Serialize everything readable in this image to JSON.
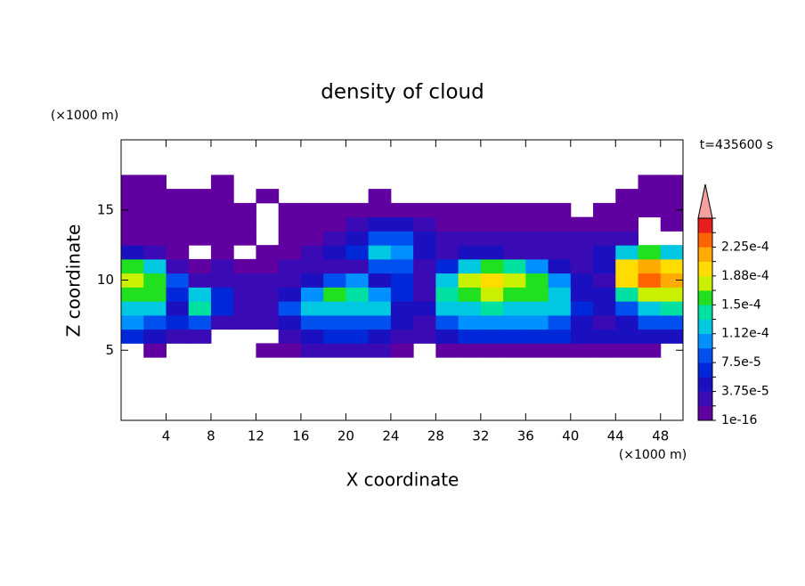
{
  "chart_data": {
    "type": "contour",
    "title": "density of cloud",
    "x_label": "X coordinate",
    "y_label": "Z coordinate",
    "x_unit": "(×1000 m)",
    "y_unit": "(×1000 m)",
    "annotation": "t=435600 s",
    "xlim": [
      0,
      50
    ],
    "ylim": [
      0,
      20
    ],
    "xticks": [
      4,
      8,
      12,
      16,
      20,
      24,
      28,
      32,
      36,
      40,
      44,
      48
    ],
    "yticks": [
      5,
      10,
      15
    ],
    "x": [
      1,
      3,
      5,
      7,
      9,
      11,
      13,
      15,
      17,
      19,
      21,
      23,
      25,
      27,
      29,
      31,
      33,
      35,
      37,
      39,
      41,
      43,
      45,
      47,
      49
    ],
    "y": [
      5,
      6,
      7,
      8,
      9,
      10,
      11,
      12,
      13,
      14,
      15,
      16,
      17
    ],
    "z": [
      [
        null,
        1e-05,
        null,
        null,
        null,
        null,
        1e-05,
        1e-05,
        2e-05,
        2e-05,
        2e-05,
        2e-05,
        1e-05,
        null,
        1e-05,
        1e-05,
        1e-05,
        1e-05,
        1e-05,
        1e-05,
        1e-05,
        1e-05,
        1e-05,
        1e-05,
        null
      ],
      [
        6e-05,
        4e-05,
        3e-05,
        2e-05,
        null,
        null,
        null,
        3e-05,
        5e-05,
        6e-05,
        6e-05,
        5e-05,
        3e-05,
        2e-05,
        5e-05,
        6e-05,
        6e-05,
        6e-05,
        6e-05,
        6e-05,
        4e-05,
        4e-05,
        4e-05,
        5e-05,
        5e-05
      ],
      [
        0.0001,
        8e-05,
        6e-05,
        8e-05,
        3e-05,
        2e-05,
        2e-05,
        4e-05,
        8e-05,
        9e-05,
        9e-05,
        8e-05,
        5e-05,
        3e-05,
        8e-05,
        0.0001,
        0.0001,
        0.0001,
        0.0001,
        9e-05,
        5e-05,
        3e-05,
        5e-05,
        8e-05,
        9e-05
      ],
      [
        0.00013,
        0.00012,
        5e-05,
        0.00014,
        6e-05,
        3e-05,
        3e-05,
        8e-05,
        0.00012,
        0.00013,
        0.00013,
        0.00012,
        5e-05,
        4e-05,
        0.00012,
        0.00013,
        0.00014,
        0.00013,
        0.00013,
        0.00012,
        6e-05,
        4e-05,
        8e-05,
        0.00013,
        0.00014
      ],
      [
        0.00015,
        0.00016,
        6e-05,
        0.00012,
        7e-05,
        3e-05,
        3e-05,
        5e-05,
        0.00011,
        0.00015,
        0.00014,
        0.00011,
        7e-05,
        3e-05,
        0.00014,
        0.00016,
        0.00017,
        0.00016,
        0.00015,
        0.00012,
        5e-05,
        4e-05,
        0.00014,
        0.00018,
        0.00017
      ],
      [
        0.00018,
        0.00016,
        8e-05,
        3e-05,
        2e-05,
        3e-05,
        2e-05,
        3e-05,
        4e-05,
        9e-05,
        0.00011,
        4e-05,
        6e-05,
        2e-05,
        0.00013,
        0.00017,
        0.00019,
        0.00018,
        0.00015,
        0.0001,
        4e-05,
        3e-05,
        0.0002,
        0.00023,
        0.00021
      ],
      [
        0.00016,
        0.00013,
        3e-05,
        1e-05,
        2e-05,
        1e-05,
        1e-05,
        2e-05,
        2e-05,
        3e-05,
        3e-05,
        8e-05,
        9e-05,
        3e-05,
        6e-05,
        0.00012,
        0.00016,
        0.00014,
        0.0001,
        5e-05,
        3e-05,
        4e-05,
        0.00019,
        0.00022,
        0.0002
      ],
      [
        5e-05,
        3e-05,
        1e-05,
        null,
        1e-05,
        null,
        1e-05,
        1e-05,
        2e-05,
        4e-05,
        6e-05,
        0.00012,
        0.0001,
        4e-05,
        3e-05,
        5e-05,
        4e-05,
        3e-05,
        3e-05,
        2e-05,
        3e-05,
        4e-05,
        0.00012,
        0.00015,
        0.00012
      ],
      [
        1e-05,
        1e-05,
        1e-05,
        1e-05,
        1e-05,
        1e-05,
        null,
        1e-05,
        1e-05,
        3e-05,
        5e-05,
        9e-05,
        8e-05,
        5e-05,
        3e-05,
        3e-05,
        2e-05,
        2e-05,
        2e-05,
        2e-05,
        2e-05,
        2e-05,
        3e-05,
        null,
        null
      ],
      [
        1e-05,
        1e-05,
        1e-05,
        1e-05,
        1e-05,
        1e-05,
        null,
        1e-05,
        1e-05,
        1e-05,
        3e-05,
        5e-05,
        4e-05,
        3e-05,
        1e-05,
        1e-05,
        1e-05,
        1e-05,
        1e-05,
        1e-05,
        1e-05,
        1e-05,
        1e-05,
        null,
        1e-05
      ],
      [
        1e-05,
        1e-05,
        1e-05,
        1e-05,
        1e-05,
        1e-05,
        null,
        1e-05,
        1e-05,
        1e-05,
        1e-05,
        1e-05,
        1e-05,
        1e-05,
        1e-05,
        1e-05,
        1e-05,
        1e-05,
        1e-05,
        1e-05,
        null,
        1e-05,
        1e-05,
        1e-05,
        1e-05
      ],
      [
        1e-05,
        1e-05,
        1e-05,
        1e-05,
        1e-05,
        null,
        1e-05,
        null,
        null,
        null,
        null,
        1e-05,
        null,
        null,
        null,
        null,
        null,
        null,
        null,
        null,
        null,
        null,
        1e-05,
        1e-05,
        1e-05
      ],
      [
        1e-05,
        1e-05,
        null,
        null,
        1e-05,
        null,
        null,
        null,
        null,
        null,
        null,
        null,
        null,
        null,
        null,
        null,
        null,
        null,
        null,
        null,
        null,
        null,
        null,
        1e-05,
        1e-05
      ]
    ],
    "levels": [
      {
        "value": 1e-16,
        "label": "1e-16"
      },
      1.875e-05,
      {
        "value": 3.75e-05,
        "label": "3.75e-5"
      },
      5.625e-05,
      {
        "value": 7.5e-05,
        "label": "7.5e-5"
      },
      9.375e-05,
      {
        "value": 0.000112,
        "label": "1.12e-4"
      },
      0.00013125,
      {
        "value": 0.00015,
        "label": "1.5e-4"
      },
      0.00016875,
      {
        "value": 0.000188,
        "label": "1.88e-4"
      },
      0.00020625,
      {
        "value": 0.000225,
        "label": "2.25e-4"
      },
      0.00024375,
      0.0002625
    ],
    "colors": [
      "#6000a0",
      "#3a0ab4",
      "#1a10c0",
      "#0028d8",
      "#0050f0",
      "#0090ff",
      "#00c8e0",
      "#00e0a0",
      "#20e020",
      "#c8f000",
      "#ffdc00",
      "#ffaa00",
      "#ff6400",
      "#e81e1e"
    ],
    "extend_color": "#f4a0a0"
  }
}
